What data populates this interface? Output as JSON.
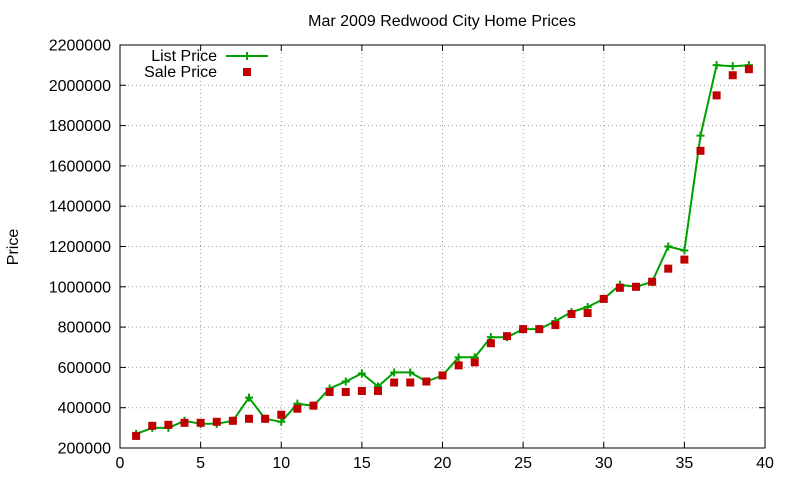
{
  "chart_data": {
    "type": "line",
    "title": "Mar 2009 Redwood City Home Prices",
    "xlabel": "",
    "ylabel": "Price",
    "xlim": [
      0,
      40
    ],
    "ylim": [
      200000,
      2200000
    ],
    "x_ticks": [
      0,
      5,
      10,
      15,
      20,
      25,
      30,
      35,
      40
    ],
    "y_ticks": [
      200000,
      400000,
      600000,
      800000,
      1000000,
      1200000,
      1400000,
      1600000,
      1800000,
      2000000,
      2200000
    ],
    "grid": true,
    "legend_position": "top-left",
    "x": [
      1,
      2,
      3,
      4,
      5,
      6,
      7,
      8,
      9,
      10,
      11,
      12,
      13,
      14,
      15,
      16,
      17,
      18,
      19,
      20,
      21,
      22,
      23,
      24,
      25,
      26,
      27,
      28,
      29,
      30,
      31,
      32,
      33,
      34,
      35,
      36,
      37,
      38,
      39
    ],
    "series": [
      {
        "name": "List Price",
        "style": "lines+points",
        "marker": "plus",
        "color": "#00a000",
        "values": [
          270000,
          300000,
          300000,
          335000,
          320000,
          320000,
          335000,
          450000,
          345000,
          330000,
          420000,
          410000,
          495000,
          530000,
          570000,
          505000,
          575000,
          575000,
          530000,
          560000,
          650000,
          650000,
          750000,
          750000,
          790000,
          790000,
          830000,
          875000,
          900000,
          940000,
          1010000,
          1000000,
          1025000,
          1200000,
          1180000,
          1750000,
          2100000,
          2095000,
          2100000
        ]
      },
      {
        "name": "Sale Price",
        "style": "points",
        "marker": "square",
        "color": "#c00000",
        "values": [
          260000,
          310000,
          315000,
          325000,
          325000,
          330000,
          335000,
          345000,
          345000,
          365000,
          395000,
          410000,
          478000,
          478000,
          483000,
          483000,
          525000,
          525000,
          530000,
          560000,
          610000,
          625000,
          720000,
          755000,
          790000,
          790000,
          810000,
          865000,
          870000,
          940000,
          995000,
          1000000,
          1025000,
          1090000,
          1135000,
          1675000,
          1950000,
          2050000,
          2080000
        ]
      }
    ]
  },
  "colors": {
    "axis": "#000000",
    "grid": "#a0a0a0",
    "list_price": "#00a000",
    "sale_price": "#c00000"
  }
}
